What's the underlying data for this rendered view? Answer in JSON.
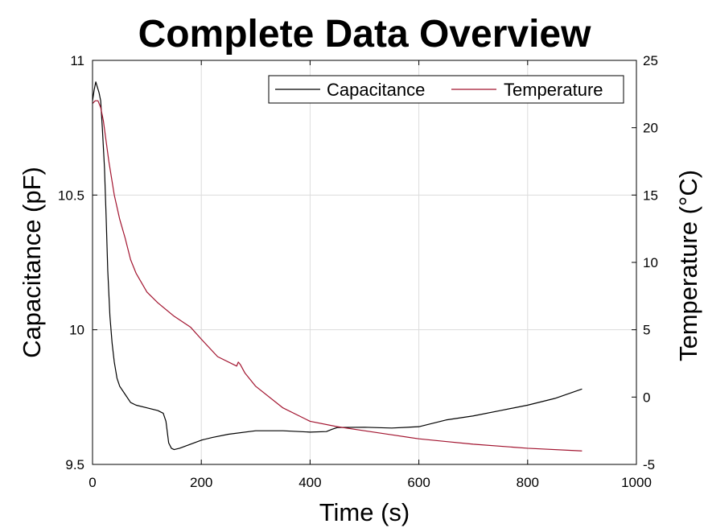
{
  "chart_data": {
    "type": "line",
    "title": "Complete Data Overview",
    "xlabel": "Time (s)",
    "ylabel_left": "Capacitance (pF)",
    "ylabel_right": "Temperature (°C)",
    "xlim": [
      0,
      1000
    ],
    "ylim_left": [
      9.5,
      11
    ],
    "ylim_right": [
      -5,
      25
    ],
    "xticks": [
      "0",
      "200",
      "400",
      "600",
      "800",
      "1000"
    ],
    "yticks_left": [
      "9.5",
      "10",
      "10.5",
      "11"
    ],
    "yticks_right": [
      "-5",
      "0",
      "5",
      "10",
      "15",
      "20",
      "25"
    ],
    "grid": true,
    "legend_position": "top-right",
    "series": [
      {
        "name": "Capacitance",
        "axis": "left",
        "color": "#000000",
        "x": [
          0,
          3,
          6,
          9,
          12,
          15,
          18,
          22,
          25,
          28,
          32,
          36,
          40,
          45,
          50,
          60,
          70,
          80,
          100,
          120,
          130,
          135,
          140,
          145,
          150,
          160,
          180,
          200,
          220,
          250,
          300,
          350,
          400,
          430,
          440,
          450,
          500,
          550,
          600,
          650,
          700,
          750,
          800,
          850,
          900
        ],
        "y": [
          10.85,
          10.89,
          10.92,
          10.9,
          10.88,
          10.85,
          10.75,
          10.6,
          10.42,
          10.22,
          10.05,
          9.95,
          9.88,
          9.82,
          9.79,
          9.76,
          9.73,
          9.72,
          9.71,
          9.7,
          9.69,
          9.66,
          9.58,
          9.56,
          9.555,
          9.56,
          9.575,
          9.59,
          9.6,
          9.612,
          9.625,
          9.625,
          9.62,
          9.622,
          9.63,
          9.637,
          9.638,
          9.635,
          9.64,
          9.665,
          9.68,
          9.7,
          9.72,
          9.745,
          9.78
        ]
      },
      {
        "name": "Temperature",
        "axis": "right",
        "color": "#a2142f",
        "x": [
          0,
          5,
          10,
          15,
          20,
          25,
          30,
          40,
          50,
          60,
          70,
          80,
          100,
          120,
          150,
          180,
          200,
          230,
          265,
          268,
          272,
          280,
          300,
          350,
          400,
          450,
          500,
          550,
          600,
          650,
          700,
          800,
          900
        ],
        "y": [
          21.8,
          22.0,
          22.0,
          21.5,
          20.5,
          19.0,
          17.5,
          15.0,
          13.2,
          11.8,
          10.2,
          9.2,
          7.8,
          7.0,
          6.0,
          5.2,
          4.3,
          3.0,
          2.3,
          2.6,
          2.4,
          1.8,
          0.8,
          -0.8,
          -1.8,
          -2.2,
          -2.5,
          -2.8,
          -3.1,
          -3.3,
          -3.5,
          -3.8,
          -4.0
        ]
      }
    ]
  }
}
